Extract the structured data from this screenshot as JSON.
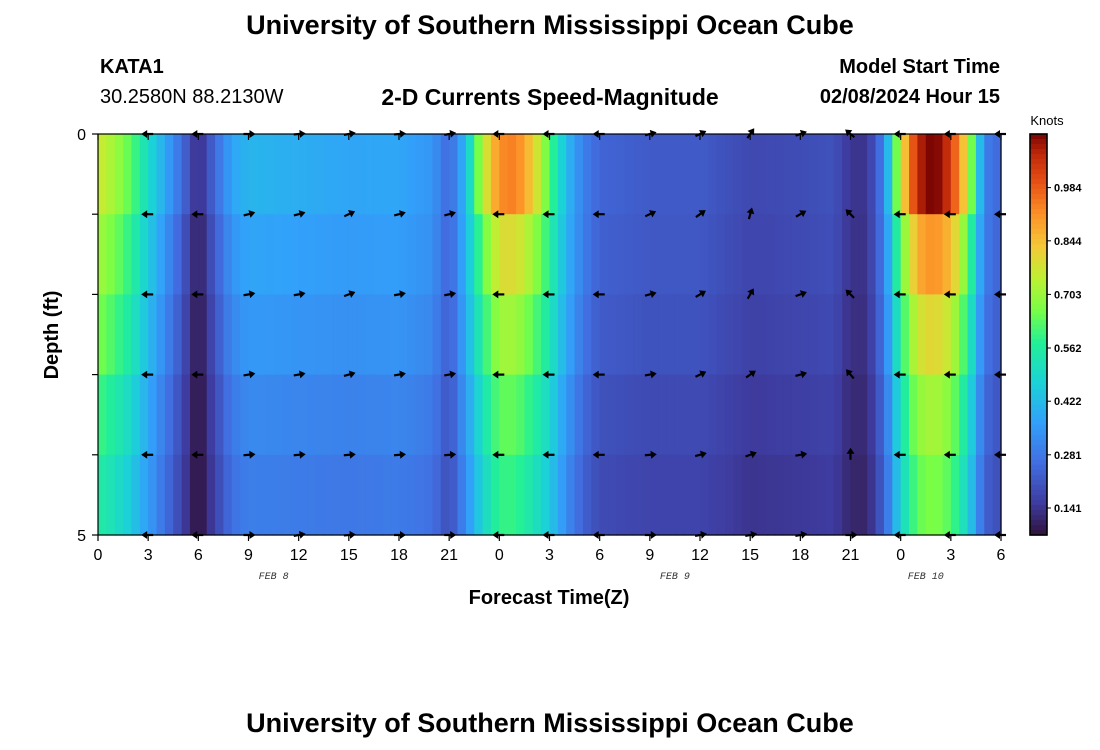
{
  "title": "University of Southern Mississippi Ocean Cube",
  "title_repeat": "University of Southern Mississippi Ocean Cube",
  "station": {
    "name": "KATA1",
    "coordinates": "30.2580N  88.2130W"
  },
  "subtitle": "2-D Currents Speed-Magnitude",
  "model_start": {
    "label": "Model Start Time",
    "value": "02/08/2024 Hour 15"
  },
  "chart_data": {
    "type": "heatmap",
    "xlabel": "Forecast Time(Z)",
    "ylabel": "Depth (ft)",
    "x_tick_labels": [
      "0",
      "3",
      "6",
      "9",
      "12",
      "15",
      "18",
      "21",
      "0",
      "3",
      "6",
      "9",
      "12",
      "15",
      "18",
      "21",
      "0",
      "3",
      "6"
    ],
    "date_labels": [
      {
        "label": "FEB 8",
        "tick_index": 3.5
      },
      {
        "label": "FEB 9",
        "tick_index": 11.5
      },
      {
        "label": "FEB 10",
        "tick_index": 16.5
      }
    ],
    "y_tick_labels": [
      "0",
      "5"
    ],
    "ylim": [
      0,
      5
    ],
    "colorbar": {
      "title": "Knots",
      "ticks": [
        "0.984",
        "0.844",
        "0.703",
        "0.562",
        "0.422",
        "0.281",
        "0.141"
      ],
      "tick_values": [
        0.984,
        0.844,
        0.703,
        0.562,
        0.422,
        0.281,
        0.141
      ],
      "range": [
        0.07,
        1.125
      ]
    },
    "speed_profile_by_hour": [
      [
        0,
        0.72
      ],
      [
        1,
        0.66
      ],
      [
        2,
        0.58
      ],
      [
        3,
        0.46
      ],
      [
        4,
        0.34
      ],
      [
        5,
        0.22
      ],
      [
        6,
        0.08
      ],
      [
        7,
        0.22
      ],
      [
        8,
        0.34
      ],
      [
        9,
        0.38
      ],
      [
        12,
        0.37
      ],
      [
        15,
        0.36
      ],
      [
        18,
        0.37
      ],
      [
        20,
        0.34
      ],
      [
        21,
        0.24
      ],
      [
        22,
        0.42
      ],
      [
        23,
        0.62
      ],
      [
        24,
        0.76
      ],
      [
        25,
        0.76
      ],
      [
        26,
        0.68
      ],
      [
        27,
        0.58
      ],
      [
        28,
        0.42
      ],
      [
        29,
        0.3
      ],
      [
        30,
        0.24
      ],
      [
        33,
        0.22
      ],
      [
        36,
        0.22
      ],
      [
        39,
        0.18
      ],
      [
        42,
        0.19
      ],
      [
        44,
        0.2
      ],
      [
        45,
        0.14
      ],
      [
        46,
        0.14
      ],
      [
        47,
        0.3
      ],
      [
        48,
        0.62
      ],
      [
        49,
        0.82
      ],
      [
        50,
        0.86
      ],
      [
        51,
        0.8
      ],
      [
        52,
        0.62
      ],
      [
        53,
        0.3
      ],
      [
        54,
        0.24
      ]
    ],
    "surface_extra_by_hour": [
      [
        0,
        0.05
      ],
      [
        22,
        0.0
      ],
      [
        23,
        0.12
      ],
      [
        24,
        0.16
      ],
      [
        25,
        0.18
      ],
      [
        26,
        0.14
      ],
      [
        27,
        0.04
      ],
      [
        28,
        0.0
      ],
      [
        47,
        0.0
      ],
      [
        48,
        0.15
      ],
      [
        49,
        0.25
      ],
      [
        50,
        0.28
      ],
      [
        51,
        0.24
      ],
      [
        52,
        0.15
      ],
      [
        53,
        0.0
      ]
    ],
    "depth_decay": [
      1.0,
      0.97,
      0.92,
      0.84,
      0.78
    ],
    "arrow_hours": [
      3,
      6,
      9,
      12,
      15,
      18,
      21,
      24,
      27,
      30,
      33,
      36,
      39,
      42,
      45,
      48,
      51,
      54
    ],
    "arrow_depth_rows": [
      0,
      1,
      2,
      3,
      4,
      5
    ],
    "arrow_directions_deg": [
      [
        180,
        180,
        180,
        180,
        180,
        180
      ],
      [
        180,
        180,
        180,
        180,
        180,
        180
      ],
      [
        0,
        15,
        10,
        10,
        5,
        0
      ],
      [
        5,
        15,
        10,
        10,
        5,
        10
      ],
      [
        10,
        25,
        20,
        15,
        5,
        5
      ],
      [
        5,
        15,
        10,
        10,
        5,
        0
      ],
      [
        10,
        15,
        10,
        10,
        5,
        0
      ],
      [
        180,
        180,
        180,
        180,
        180,
        180
      ],
      [
        180,
        180,
        180,
        180,
        180,
        180
      ],
      [
        180,
        180,
        180,
        180,
        180,
        180
      ],
      [
        15,
        25,
        15,
        10,
        5,
        0
      ],
      [
        25,
        35,
        30,
        25,
        15,
        10
      ],
      [
        55,
        75,
        60,
        35,
        20,
        10
      ],
      [
        20,
        30,
        20,
        15,
        10,
        10
      ],
      [
        140,
        135,
        135,
        130,
        90,
        0
      ],
      [
        180,
        180,
        180,
        180,
        180,
        180
      ],
      [
        180,
        180,
        180,
        180,
        180,
        180
      ],
      [
        180,
        180,
        180,
        180,
        180,
        180
      ]
    ]
  }
}
